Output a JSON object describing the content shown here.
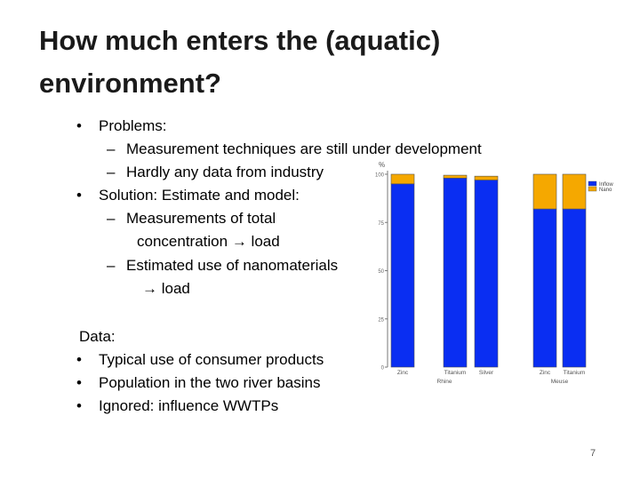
{
  "slide": {
    "title": "How much enters the (aquatic) environment?",
    "page_number": "7"
  },
  "content": {
    "problems_label": "Problems:",
    "problems": [
      "Measurement techniques are still under development",
      "Hardly any data from industry"
    ],
    "solution_label": "Solution: Estimate and model:",
    "solution_items": [
      {
        "line1": "Measurements of total",
        "line2": "concentration",
        "line2b": "load"
      },
      {
        "line1": "Estimated use of nanomaterials",
        "line2": "load"
      }
    ],
    "data_label": "Data:",
    "data_items": [
      "Typical use of consumer products",
      "Population in the two river basins",
      "Ignored: influence WWTPs"
    ]
  },
  "colors": {
    "inflow": "#0a2ef2",
    "nano": "#f5a800"
  },
  "chart_data": {
    "type": "bar",
    "stacked": true,
    "ylabel": "%",
    "ylim": [
      0,
      100
    ],
    "yticks": [
      "0",
      "25",
      "50",
      "75",
      "100"
    ],
    "categories": [
      "Zinc",
      "Titanium",
      "Silver",
      "Zinc",
      "Titanium"
    ],
    "groups": [
      "Rhine",
      "Meuse"
    ],
    "series": [
      {
        "name": "Inflow",
        "values": [
          95,
          98,
          97,
          82,
          82
        ]
      },
      {
        "name": "Nano",
        "values": [
          5,
          1.5,
          2,
          18,
          18
        ]
      }
    ],
    "legend": "top-right"
  }
}
